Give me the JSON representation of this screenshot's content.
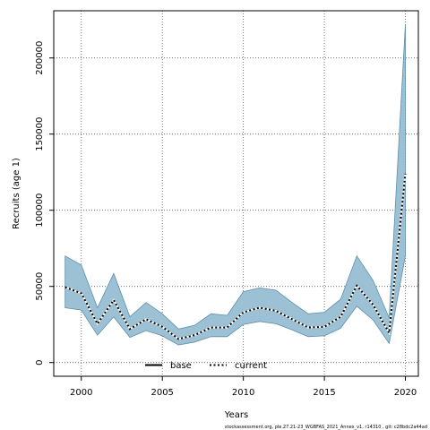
{
  "chart_data": {
    "type": "line",
    "xlabel": "Years",
    "ylabel": "Recruits (age 1)",
    "xlim": [
      1998.3,
      2020.8
    ],
    "ylim": [
      -9000,
      231000
    ],
    "x_ticks": [
      2000,
      2005,
      2010,
      2015,
      2020
    ],
    "y_ticks": [
      0,
      50000,
      100000,
      150000,
      200000
    ],
    "grid": true,
    "legend_placement": "bottom-center",
    "band_color": "#9dc1d4",
    "band_edge_color": "#5d8fae",
    "x": [
      1999,
      2000,
      2001,
      2002,
      2003,
      2004,
      2005,
      2006,
      2007,
      2008,
      2009,
      2010,
      2011,
      2012,
      2013,
      2014,
      2015,
      2016,
      2017,
      2018,
      2019,
      2020
    ],
    "series": [
      {
        "name": "current",
        "style": "dotted",
        "values": [
          49500,
          45500,
          25500,
          41000,
          22000,
          28500,
          23500,
          15500,
          18000,
          23000,
          23000,
          33000,
          36000,
          34000,
          28500,
          23000,
          23500,
          30000,
          50500,
          38000,
          19500,
          124000
        ],
        "lower": [
          36000,
          34500,
          18000,
          30000,
          16500,
          21000,
          17500,
          11500,
          13500,
          17000,
          17000,
          25000,
          27000,
          25500,
          21500,
          17000,
          17500,
          22500,
          37000,
          28000,
          12500,
          70000
        ],
        "upper": [
          70000,
          64000,
          36000,
          58500,
          30000,
          39500,
          32000,
          22000,
          24500,
          32000,
          31000,
          46500,
          49000,
          47500,
          39500,
          32000,
          33000,
          41500,
          70000,
          54000,
          29500,
          222000
        ]
      },
      {
        "name": "base",
        "style": "solid",
        "values": [
          49500,
          45500,
          25500,
          41000,
          22000,
          28500,
          23500,
          15500,
          18000,
          23000,
          23000,
          33000,
          36000,
          34000,
          28500,
          23000,
          23500,
          30000,
          50500,
          38000,
          19500,
          124000
        ]
      }
    ],
    "footer": "stockassessment.org, ple.27.21-23_WGBFAS_2021_Annex_v1, r14310 , git: c28bdc2a44ad"
  }
}
